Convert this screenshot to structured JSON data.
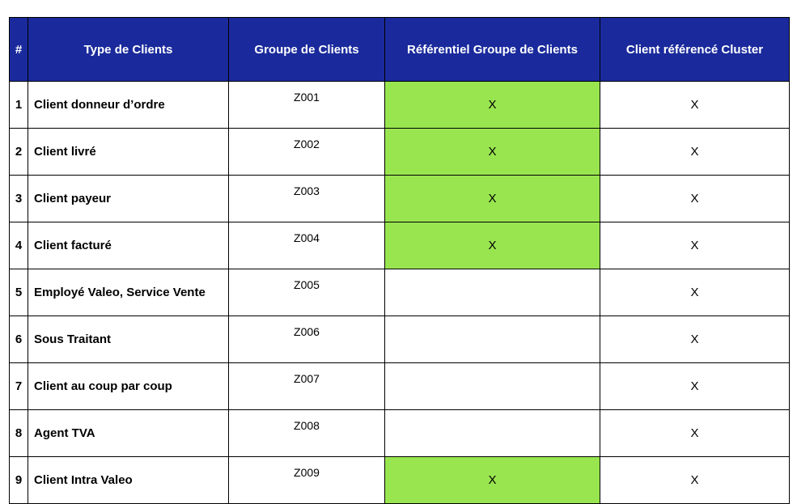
{
  "table": {
    "headers": {
      "num": "#",
      "type": "Type de Clients",
      "group": "Groupe de Clients",
      "ref_group": "Référentiel Groupe de Clients",
      "cluster": "Client référencé Cluster"
    },
    "rows": [
      {
        "num": "1",
        "type": "Client donneur d’ordre",
        "group": "Z001",
        "ref_group": "X",
        "cluster": "X"
      },
      {
        "num": "2",
        "type": "Client livré",
        "group": "Z002",
        "ref_group": "X",
        "cluster": "X"
      },
      {
        "num": "3",
        "type": "Client payeur",
        "group": "Z003",
        "ref_group": "X",
        "cluster": "X"
      },
      {
        "num": "4",
        "type": "Client facturé",
        "group": "Z004",
        "ref_group": "X",
        "cluster": "X"
      },
      {
        "num": "5",
        "type": "Employé Valeo, Service Vente",
        "group": "Z005",
        "ref_group": "",
        "cluster": "X"
      },
      {
        "num": "6",
        "type": "Sous Traitant",
        "group": "Z006",
        "ref_group": "",
        "cluster": "X"
      },
      {
        "num": "7",
        "type": "Client au coup par coup",
        "group": "Z007",
        "ref_group": "",
        "cluster": "X"
      },
      {
        "num": "8",
        "type": "Agent TVA",
        "group": "Z008",
        "ref_group": "",
        "cluster": "X"
      },
      {
        "num": "9",
        "type": "Client Intra Valeo",
        "group": "Z009",
        "ref_group": "X",
        "cluster": "X"
      }
    ]
  },
  "colors": {
    "header_bg": "#1a2a9c",
    "header_text": "#ffffff",
    "highlight": "#99e550"
  }
}
